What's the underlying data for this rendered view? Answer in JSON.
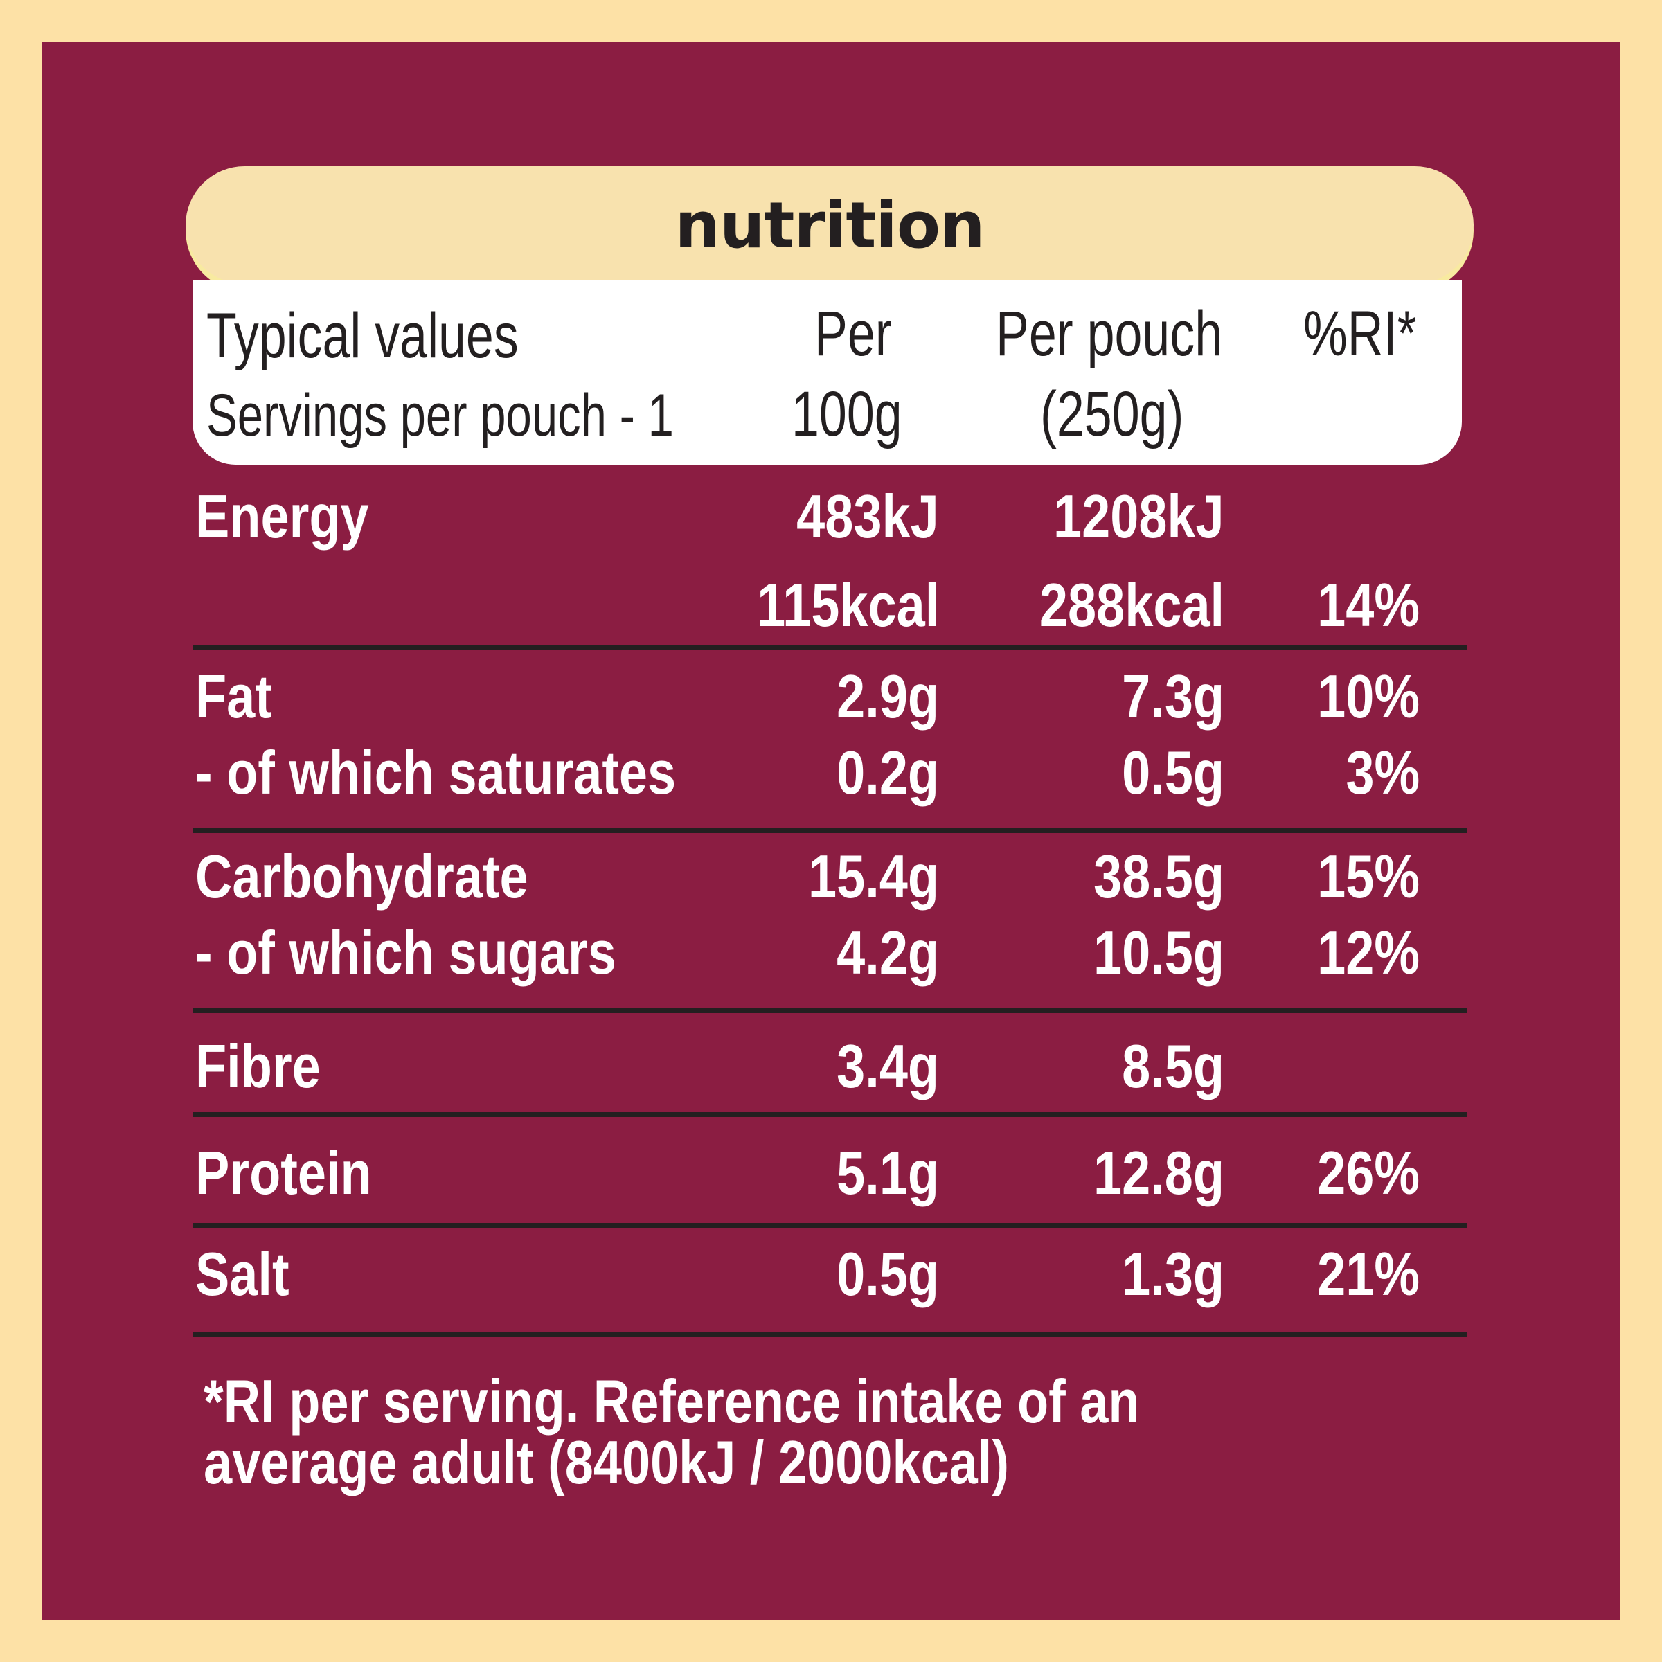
{
  "title": "nutrition",
  "header": {
    "col_label_1": "Typical values",
    "col_label_2": "Servings per pouch - 1",
    "per100_1": "Per",
    "per100_2": "100g",
    "perpouch_1": "Per pouch",
    "perpouch_2": "(250g)",
    "ri": "%RI*"
  },
  "rows": [
    {
      "label": "Energy",
      "per100": "483kJ",
      "per_pouch": "1208kJ",
      "ri": ""
    },
    {
      "label": "",
      "per100": "115kcal",
      "per_pouch": "288kcal",
      "ri": "14%"
    },
    {
      "label": "Fat",
      "per100": "2.9g",
      "per_pouch": "7.3g",
      "ri": "10%"
    },
    {
      "label": "- of which saturates",
      "per100": "0.2g",
      "per_pouch": "0.5g",
      "ri": "3%"
    },
    {
      "label": "Carbohydrate",
      "per100": "15.4g",
      "per_pouch": "38.5g",
      "ri": "15%"
    },
    {
      "label": "- of which sugars",
      "per100": "4.2g",
      "per_pouch": "10.5g",
      "ri": "12%"
    },
    {
      "label": "Fibre",
      "per100": "3.4g",
      "per_pouch": "8.5g",
      "ri": ""
    },
    {
      "label": "Protein",
      "per100": "5.1g",
      "per_pouch": "12.8g",
      "ri": "26%"
    },
    {
      "label": "Salt",
      "per100": "0.5g",
      "per_pouch": "1.3g",
      "ri": "21%"
    }
  ],
  "footnote": {
    "line1": "*RI per serving. Reference intake of an",
    "line2": "average adult (8400kJ / 2000kcal)"
  },
  "colors": {
    "background": "#fde1a6",
    "panel": "#8b1d42",
    "tab": "#f8e2ae",
    "text_dark": "#231f20",
    "text_light": "#ffffff"
  }
}
